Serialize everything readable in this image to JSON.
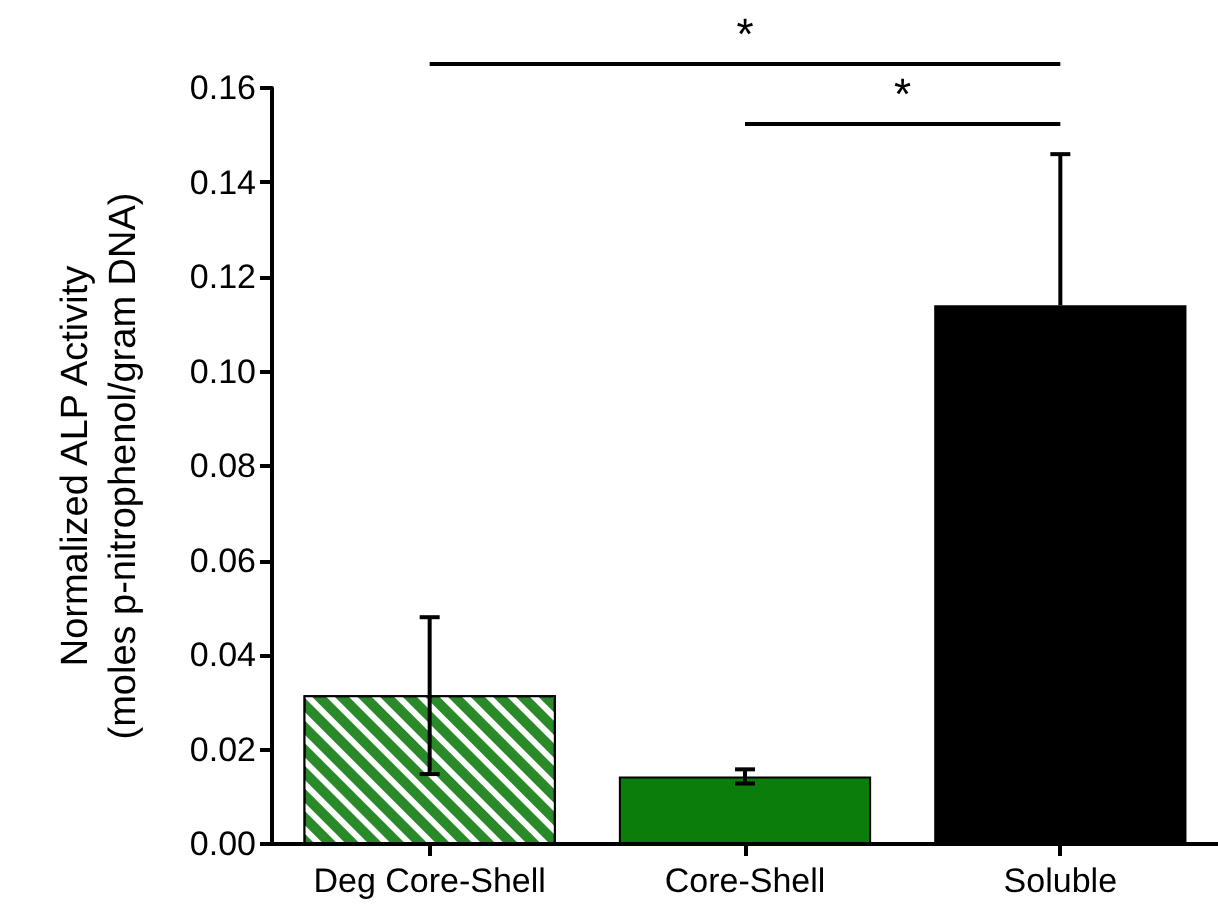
{
  "chart_data": {
    "type": "bar",
    "ylabel": "Normalized ALP Activity\n(moles p-nitrophenol/gram DNA)",
    "categories": [
      "Deg Core-Shell",
      "Core-Shell",
      "Soluble"
    ],
    "values": [
      0.0315,
      0.0143,
      0.114
    ],
    "colors": [
      "#2a8a2a",
      "#0b7d0b",
      "#000000"
    ],
    "errors": [
      [
        0.0148,
        0.048
      ],
      [
        0.0128,
        0.0158
      ],
      [
        0.114,
        0.146
      ]
    ],
    "ylim": [
      0,
      0.16
    ],
    "yticks": [
      {
        "value": 0,
        "label": "0.00"
      },
      {
        "value": 0.02,
        "label": "0.02"
      },
      {
        "value": 0.04,
        "label": "0.04"
      },
      {
        "value": 0.06,
        "label": "0.06"
      },
      {
        "value": 0.08,
        "label": "0.08"
      },
      {
        "value": 0.1,
        "label": "0.10"
      },
      {
        "value": 0.12,
        "label": "0.12"
      },
      {
        "value": 0.14,
        "label": "0.14"
      },
      {
        "value": 0.16,
        "label": "0.16"
      }
    ],
    "annotations": [
      "*",
      "*"
    ],
    "grid": false
  }
}
